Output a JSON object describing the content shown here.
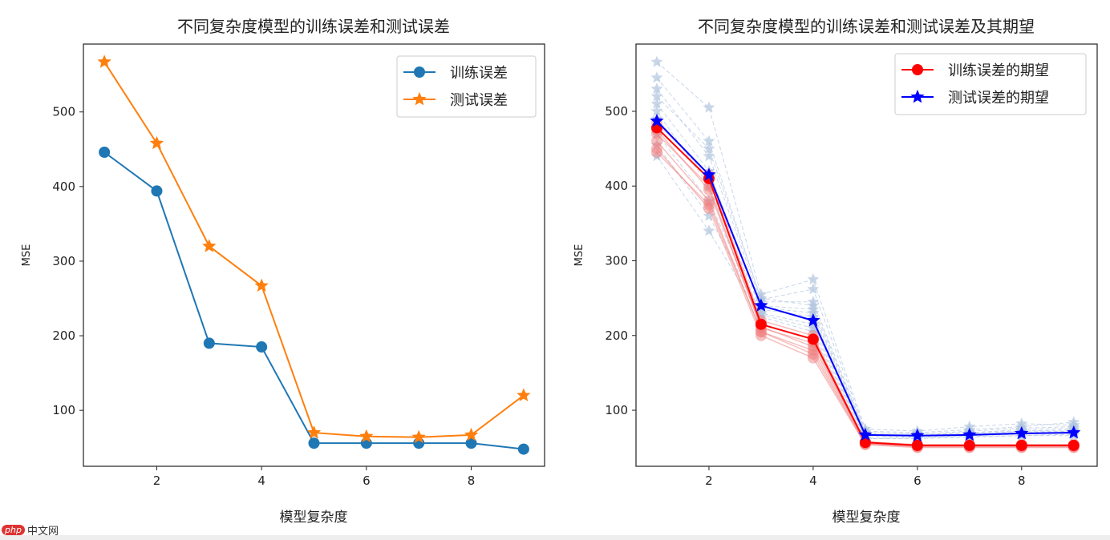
{
  "chart_data": [
    {
      "type": "line",
      "title": "不同复杂度模型的训练误差和测试误差",
      "xlabel": "模型复杂度",
      "ylabel": "MSE",
      "xlim": [
        0.6,
        9.4
      ],
      "ylim": [
        25,
        591
      ],
      "xticks": [
        2,
        4,
        6,
        8
      ],
      "yticks": [
        100,
        200,
        300,
        400,
        500
      ],
      "grid": false,
      "legend": "top-right",
      "x": [
        1,
        2,
        3,
        4,
        5,
        6,
        7,
        8,
        9
      ],
      "series": [
        {
          "name": "训练误差",
          "color": "#1f77b4",
          "marker": "circle",
          "values": [
            446,
            394,
            190,
            185,
            56,
            56,
            56,
            56,
            48
          ]
        },
        {
          "name": "测试误差",
          "color": "#ff7f0e",
          "marker": "star",
          "values": [
            567,
            458,
            320,
            267,
            70,
            65,
            64,
            67,
            120
          ]
        }
      ]
    },
    {
      "type": "line",
      "title": "不同复杂度模型的训练误差和测试误差及其期望",
      "xlabel": "模型复杂度",
      "ylabel": "MSE",
      "xlim": [
        0.6,
        9.45
      ],
      "ylim": [
        25,
        590
      ],
      "xticks": [
        2,
        4,
        6,
        8
      ],
      "yticks": [
        100,
        200,
        300,
        400,
        500
      ],
      "grid": false,
      "legend": "top-right",
      "x": [
        1,
        2,
        3,
        4,
        5,
        6,
        7,
        8,
        9
      ],
      "runs_train_color": "#f08080",
      "runs_test_color": "#b0c4de",
      "runs_train": [
        [
          470,
          400,
          210,
          190,
          56,
          52,
          52,
          52,
          52
        ],
        [
          460,
          380,
          205,
          180,
          55,
          51,
          51,
          51,
          51
        ],
        [
          450,
          370,
          200,
          170,
          54,
          50,
          50,
          50,
          50
        ],
        [
          485,
          415,
          220,
          200,
          58,
          54,
          54,
          54,
          54
        ],
        [
          475,
          395,
          212,
          185,
          57,
          53,
          53,
          53,
          53
        ],
        [
          445,
          375,
          205,
          175,
          55,
          52,
          52,
          52,
          52
        ]
      ],
      "runs_test": [
        [
          566,
          505,
          255,
          275,
          75,
          72,
          78,
          82,
          80
        ],
        [
          545,
          460,
          248,
          262,
          72,
          70,
          74,
          78,
          84
        ],
        [
          530,
          440,
          245,
          245,
          70,
          68,
          72,
          76,
          78
        ],
        [
          510,
          420,
          240,
          235,
          68,
          66,
          70,
          72,
          74
        ],
        [
          500,
          400,
          235,
          225,
          66,
          65,
          68,
          70,
          72
        ],
        [
          470,
          380,
          230,
          215,
          64,
          64,
          66,
          68,
          70
        ],
        [
          455,
          360,
          228,
          210,
          62,
          63,
          65,
          66,
          68
        ],
        [
          440,
          340,
          225,
          205,
          62,
          62,
          64,
          66,
          66
        ],
        [
          520,
          450,
          250,
          240,
          70,
          68,
          70,
          74,
          76
        ],
        [
          490,
          410,
          238,
          230,
          68,
          66,
          68,
          72,
          72
        ]
      ],
      "series": [
        {
          "name": "训练误差的期望",
          "color": "#ff0000",
          "marker": "circle",
          "values": [
            478,
            410,
            215,
            195,
            57,
            53,
            53,
            53,
            53
          ]
        },
        {
          "name": "测试误差的期望",
          "color": "#0000ff",
          "marker": "star",
          "values": [
            487,
            415,
            240,
            220,
            67,
            66,
            67,
            69,
            70
          ]
        }
      ]
    }
  ],
  "watermark": {
    "logo": "php",
    "text": "中文网"
  }
}
